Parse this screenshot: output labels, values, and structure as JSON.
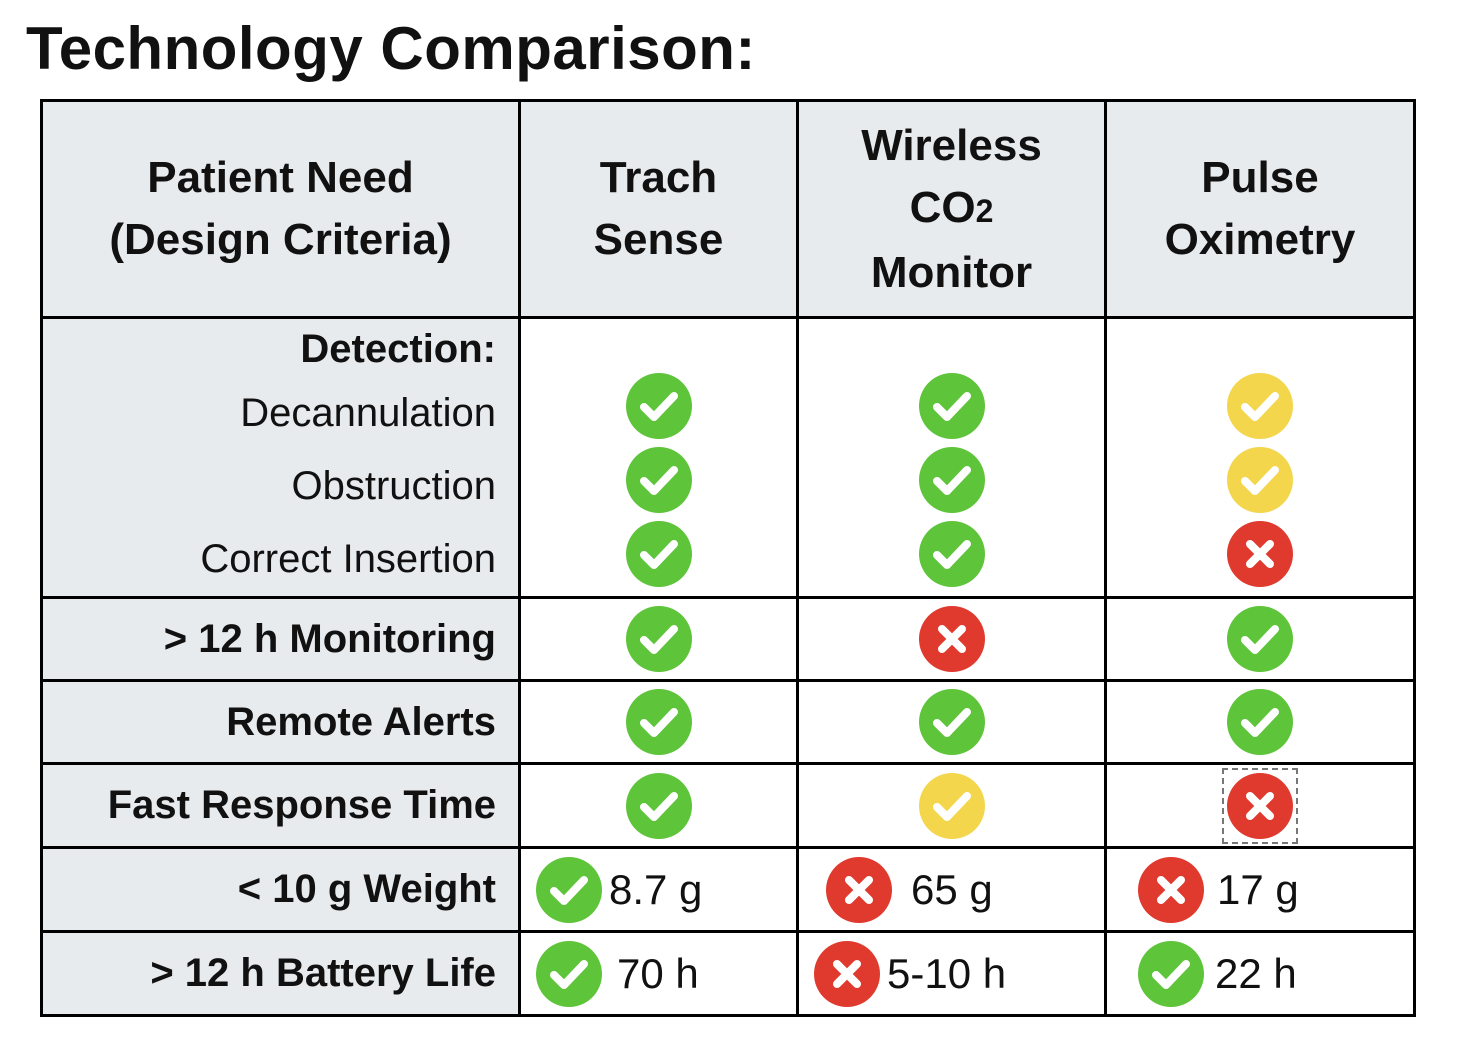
{
  "title": "Technology Comparison:",
  "colors": {
    "pass": "#5ec43a",
    "partial": "#f3d64c",
    "fail": "#e03a2e",
    "header_bg": "#e8ebee"
  },
  "header": {
    "criteria_line1": "Patient Need",
    "criteria_line2": "(Design Criteria)",
    "tech1_line1": "Trach",
    "tech1_line2": "Sense",
    "tech2_line1": "Wireless",
    "tech2_line2_main": "CO",
    "tech2_line2_sub": "2",
    "tech2_line3": "Monitor",
    "tech3_line1": "Pulse",
    "tech3_line2": "Oximetry"
  },
  "rows": {
    "detection": {
      "label": "Detection:",
      "items": [
        "Decannulation",
        "Obstruction",
        "Correct Insertion"
      ],
      "trach": [
        "check-green-icon",
        "check-green-icon",
        "check-green-icon"
      ],
      "co2": [
        "check-green-icon",
        "check-green-icon",
        "check-green-icon"
      ],
      "pulse": [
        "check-yellow-icon",
        "check-yellow-icon",
        "x-red-icon"
      ]
    },
    "monitoring": {
      "label": "> 12 h Monitoring",
      "trach": "check-green-icon",
      "co2": "x-red-icon",
      "pulse": "check-green-icon"
    },
    "alerts": {
      "label": "Remote Alerts",
      "trach": "check-green-icon",
      "co2": "check-green-icon",
      "pulse": "check-green-icon"
    },
    "response": {
      "label": "Fast Response Time",
      "trach": "check-green-icon",
      "co2": "check-yellow-icon",
      "pulse": "x-red-icon"
    },
    "weight": {
      "label": "< 10 g Weight",
      "trach_value": "8.7 g",
      "co2_value": "65 g",
      "pulse_value": "17 g",
      "trach": "check-green-icon",
      "co2": "x-red-icon",
      "pulse": "x-red-icon"
    },
    "battery": {
      "label": "> 12 h Battery Life",
      "trach_value": "70 h",
      "co2_value": "5-10 h",
      "pulse_value": "22 h",
      "trach": "check-green-icon",
      "co2": "x-red-icon",
      "pulse": "check-green-icon"
    }
  }
}
